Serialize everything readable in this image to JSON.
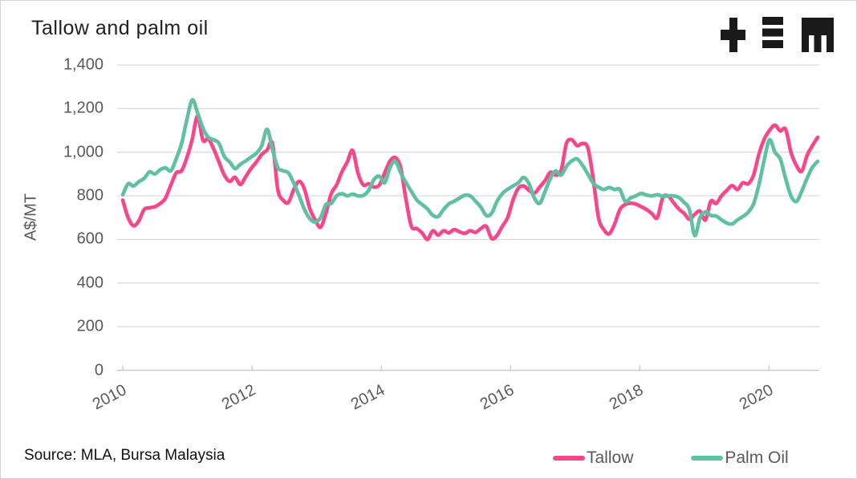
{
  "title": "Tallow and palm oil",
  "source_label": "Source: MLA, Bursa Malaysia",
  "logo": {
    "name": "plus-triplebar-m-logo",
    "color": "#1a1a1a"
  },
  "colors": {
    "tallow": "#F7478C",
    "palm_oil": "#5FC0A2",
    "gridline": "#D9D9D9",
    "axis_line": "#C9C9C9",
    "axis_text": "#595959"
  },
  "chart_data": {
    "type": "line",
    "title": "Tallow and palm oil",
    "xlabel": "",
    "ylabel": "A$/MT",
    "ylim": [
      0,
      1400
    ],
    "yticks": [
      0,
      200,
      400,
      600,
      800,
      1000,
      1200,
      1400
    ],
    "xticks": [
      2010,
      2012,
      2014,
      2016,
      2018,
      2020
    ],
    "x_start_year": 2010,
    "x_step_months": 1,
    "x_end": "2020-11",
    "grid": "horizontal-only",
    "legend_position": "bottom-right",
    "series": [
      {
        "name": "Tallow",
        "color": "#F7478C",
        "values": [
          780,
          700,
          663,
          685,
          737,
          745,
          750,
          765,
          790,
          850,
          905,
          915,
          975,
          1060,
          1165,
          1055,
          1062,
          1015,
          955,
          895,
          866,
          885,
          852,
          888,
          925,
          955,
          990,
          1010,
          1040,
          830,
          780,
          770,
          830,
          866,
          830,
          740,
          690,
          656,
          720,
          810,
          850,
          910,
          955,
          1008,
          905,
          850,
          855,
          840,
          850,
          905,
          960,
          975,
          928,
          780,
          660,
          650,
          630,
          600,
          640,
          620,
          640,
          630,
          645,
          635,
          628,
          640,
          632,
          650,
          660,
          605,
          618,
          660,
          700,
          780,
          835,
          845,
          825,
          812,
          840,
          870,
          908,
          895,
          915,
          1040,
          1057,
          1030,
          1040,
          1020,
          880,
          700,
          645,
          626,
          670,
          737,
          760,
          766,
          762,
          750,
          737,
          718,
          700,
          790,
          800,
          770,
          740,
          720,
          693,
          715,
          730,
          689,
          775,
          765,
          800,
          825,
          847,
          829,
          860,
          855,
          895,
          990,
          1060,
          1100,
          1124,
          1098,
          1105,
          1000,
          940,
          912,
          984,
          1030,
          1068
        ]
      },
      {
        "name": "Palm Oil",
        "color": "#5FC0A2",
        "values": [
          805,
          855,
          845,
          865,
          880,
          910,
          900,
          920,
          928,
          915,
          970,
          1040,
          1150,
          1240,
          1180,
          1110,
          1068,
          1057,
          1040,
          980,
          955,
          925,
          945,
          960,
          978,
          995,
          1030,
          1105,
          1013,
          930,
          915,
          905,
          858,
          800,
          737,
          695,
          680,
          700,
          760,
          765,
          800,
          810,
          800,
          808,
          800,
          802,
          825,
          875,
          890,
          860,
          930,
          958,
          905,
          860,
          820,
          781,
          760,
          740,
          711,
          705,
          737,
          763,
          775,
          790,
          803,
          800,
          775,
          748,
          710,
          720,
          774,
          810,
          830,
          845,
          860,
          884,
          855,
          790,
          766,
          820,
          880,
          914,
          895,
          935,
          960,
          969,
          940,
          900,
          858,
          840,
          829,
          838,
          829,
          829,
          774,
          790,
          800,
          811,
          803,
          800,
          805,
          798,
          800,
          800,
          793,
          770,
          737,
          618,
          700,
          726,
          710,
          707,
          690,
          675,
          671,
          690,
          705,
          725,
          763,
          850,
          965,
          1057,
          1000,
          969,
          880,
          800,
          774,
          820,
          880,
          930,
          958
        ]
      }
    ]
  }
}
